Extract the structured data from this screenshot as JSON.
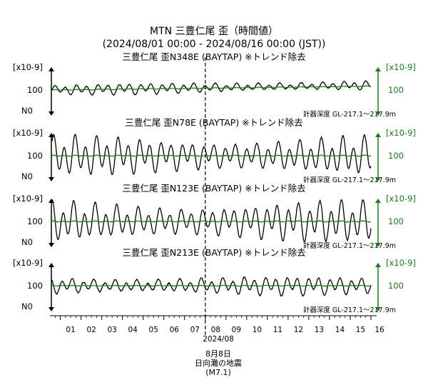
{
  "chart_data": {
    "type": "line",
    "title": "MTN 三豊仁尾 歪（時間値）",
    "subtitle": "(2024/08/01 00:00 - 2024/08/16 00:00 (JST))",
    "x_tick_labels": [
      "01",
      "02",
      "03",
      "04",
      "05",
      "06",
      "07",
      "08",
      "09",
      "10",
      "11",
      "12",
      "13",
      "14",
      "15",
      "16"
    ],
    "x_year_label": "2024/08",
    "event": {
      "date_label": "8月8日",
      "name": "日向灘の地震",
      "magnitude": "(M7.1)",
      "day": 8.0
    },
    "colors": {
      "raw": "#000000",
      "detrended": "#1a7a1a",
      "event_line": "#000000"
    },
    "panels": [
      {
        "title": "三豊仁尾 歪N348E (BAYTAP) ※トレンド除去",
        "left_unit": "[x10-9]",
        "left_scale": "100",
        "left_dir": "N0",
        "right_unit": "[x10-9]",
        "right_scale": "100",
        "depth": "計器深度 GL-217.1～217.9m",
        "series": [
          {
            "name": "raw",
            "color": "#000000",
            "amp": 0.32,
            "trend": 0.28,
            "noise": 0.04
          },
          {
            "name": "detrended",
            "color": "#1a7a1a",
            "amp": 0.02,
            "trend": 0.22,
            "noise": 0.03
          }
        ]
      },
      {
        "title": "三豊仁尾 歪N78E (BAYTAP) ※トレンド除去",
        "left_unit": "[x10-9]",
        "left_scale": "100",
        "left_dir": "N0",
        "right_unit": "[x10-9]",
        "right_scale": "100",
        "depth": "計器深度 GL-217.1～217.9m",
        "series": [
          {
            "name": "raw",
            "color": "#000000",
            "amp": 1.15,
            "trend": 0.0,
            "noise": 0.05
          },
          {
            "name": "detrended",
            "color": "#1a7a1a",
            "amp": 0.03,
            "trend": 0.0,
            "noise": 0.04
          }
        ]
      },
      {
        "title": "三豊仁尾 歪N123E (BAYTAP) ※トレンド除去",
        "left_unit": "[x10-9]",
        "left_scale": "100",
        "left_dir": "N0",
        "right_unit": "[x10-9]",
        "right_scale": "100",
        "depth": "計器深度 GL-217.1～217.9m",
        "series": [
          {
            "name": "raw",
            "color": "#000000",
            "amp": 1.2,
            "trend": 0.0,
            "noise": 0.05
          },
          {
            "name": "detrended",
            "color": "#1a7a1a",
            "amp": 0.03,
            "trend": 0.0,
            "noise": 0.04
          }
        ]
      },
      {
        "title": "三豊仁尾 歪N213E (BAYTAP) ※トレンド除去",
        "left_unit": "[x10-9]",
        "left_scale": "100",
        "left_dir": "N0",
        "right_unit": "[x10-9]",
        "right_scale": "100",
        "depth": "計器深度 GL-217.1～217.9m",
        "series": [
          {
            "name": "raw",
            "color": "#000000",
            "amp": 0.55,
            "trend": 0.0,
            "noise": 0.06
          },
          {
            "name": "detrended",
            "color": "#1a7a1a",
            "amp": 0.02,
            "trend": 0.0,
            "noise": 0.03
          }
        ]
      }
    ],
    "x_range": [
      0.6,
      16.0
    ]
  }
}
